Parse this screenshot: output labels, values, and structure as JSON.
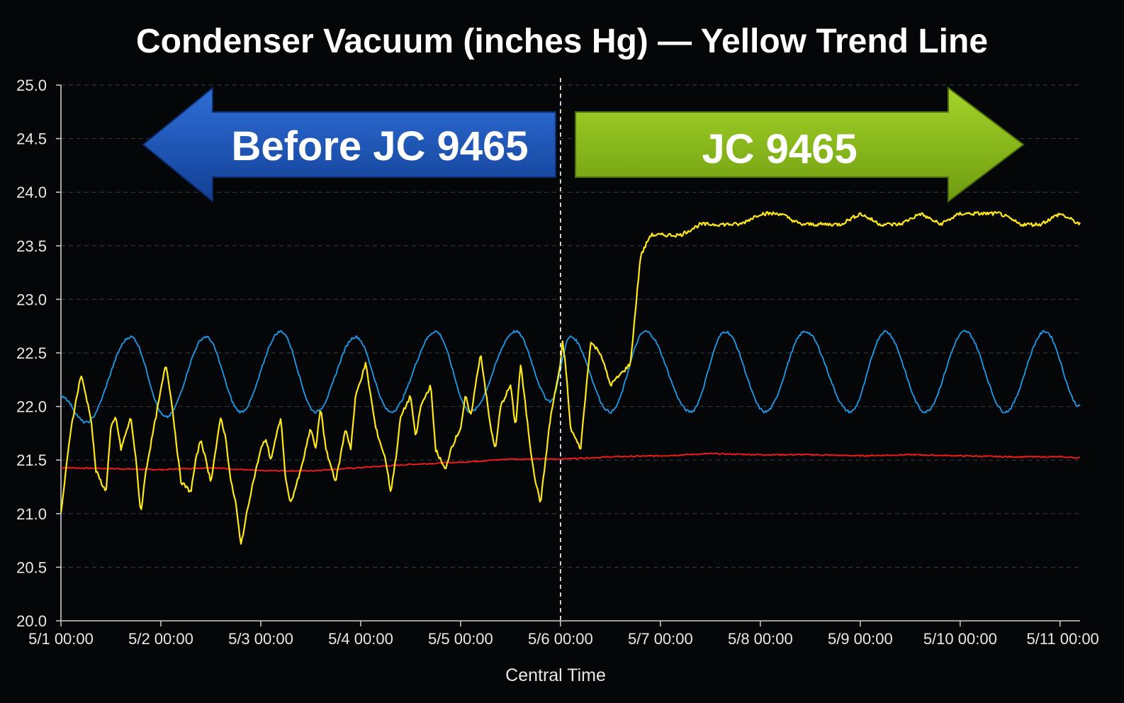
{
  "chart_data": {
    "type": "line",
    "title": "Condenser Vacuum (inches Hg) — Yellow Trend Line",
    "xlabel": "Central Time",
    "ylabel": "",
    "ylim": [
      20.0,
      25.0
    ],
    "yticks": [
      "20.0",
      "20.5",
      "21.0",
      "21.5",
      "22.0",
      "22.5",
      "23.0",
      "23.5",
      "24.0",
      "24.5",
      "25.0"
    ],
    "xlim": [
      0,
      10.2
    ],
    "xticks": [
      "5/1 00:00",
      "5/2 00:00",
      "5/3 00:00",
      "5/4 00:00",
      "5/5 00:00",
      "5/6 00:00",
      "5/7 00:00",
      "5/8 00:00",
      "5/9 00:00",
      "5/10 00:00",
      "5/11 00:00"
    ],
    "grid": "horizontal dashed",
    "divider_x": "5/6 00:00",
    "annotations": [
      {
        "text": "Before JC 9465",
        "direction": "left",
        "color": "#1f5fc4"
      },
      {
        "text": "JC 9465",
        "direction": "right",
        "color": "#8fc21c"
      }
    ],
    "series": [
      {
        "color": "#ffe81a",
        "x": [
          0.0,
          0.1,
          0.2,
          0.3,
          0.35,
          0.45,
          0.5,
          0.55,
          0.6,
          0.7,
          0.75,
          0.8,
          0.85,
          0.95,
          1.05,
          1.1,
          1.2,
          1.3,
          1.35,
          1.4,
          1.5,
          1.55,
          1.6,
          1.65,
          1.7,
          1.75,
          1.8,
          1.9,
          2.0,
          2.05,
          2.1,
          2.2,
          2.25,
          2.3,
          2.4,
          2.5,
          2.55,
          2.6,
          2.65,
          2.75,
          2.85,
          2.9,
          2.95,
          3.05,
          3.15,
          3.25,
          3.3,
          3.35,
          3.4,
          3.5,
          3.55,
          3.6,
          3.7,
          3.75,
          3.85,
          3.9,
          4.0,
          4.05,
          4.1,
          4.2,
          4.3,
          4.35,
          4.4,
          4.5,
          4.55,
          4.6,
          4.7,
          4.75,
          4.8,
          4.9,
          5.0,
          5.02,
          5.05,
          5.1,
          5.2,
          5.3,
          5.4,
          5.5,
          5.6,
          5.7,
          5.8,
          5.9,
          6.0,
          6.2,
          6.4,
          6.6,
          6.8,
          7.0,
          7.2,
          7.4,
          7.6,
          7.8,
          8.0,
          8.2,
          8.4,
          8.6,
          8.8,
          9.0,
          9.2,
          9.4,
          9.6,
          9.8,
          10.0,
          10.2
        ],
        "y": [
          21.0,
          21.8,
          22.3,
          21.9,
          21.4,
          21.2,
          21.8,
          21.9,
          21.6,
          21.9,
          21.5,
          21.0,
          21.4,
          21.9,
          22.4,
          22.1,
          21.3,
          21.2,
          21.5,
          21.7,
          21.3,
          21.6,
          21.9,
          21.7,
          21.3,
          21.1,
          20.7,
          21.2,
          21.6,
          21.7,
          21.5,
          21.9,
          21.3,
          21.1,
          21.4,
          21.8,
          21.6,
          22.0,
          21.6,
          21.3,
          21.8,
          21.6,
          22.1,
          22.4,
          21.8,
          21.5,
          21.2,
          21.5,
          21.9,
          22.1,
          21.7,
          22.0,
          22.2,
          21.6,
          21.4,
          21.6,
          21.8,
          22.1,
          21.9,
          22.5,
          21.8,
          21.6,
          22.0,
          22.2,
          21.8,
          22.4,
          21.6,
          21.3,
          21.1,
          21.9,
          22.4,
          22.6,
          22.4,
          21.8,
          21.6,
          22.6,
          22.5,
          22.2,
          22.3,
          22.4,
          23.4,
          23.6,
          23.6,
          23.6,
          23.7,
          23.7,
          23.7,
          23.8,
          23.8,
          23.7,
          23.7,
          23.7,
          23.8,
          23.7,
          23.7,
          23.8,
          23.7,
          23.8,
          23.8,
          23.8,
          23.7,
          23.7,
          23.8,
          23.7
        ]
      },
      {
        "color": "#1e9bea",
        "x": [
          0.0,
          0.25,
          0.7,
          1.05,
          1.45,
          1.8,
          2.2,
          2.55,
          2.95,
          3.3,
          3.75,
          4.1,
          4.55,
          4.9,
          5.1,
          5.5,
          5.85,
          6.3,
          6.65,
          7.05,
          7.45,
          7.9,
          8.25,
          8.65,
          9.05,
          9.45,
          9.85,
          10.2
        ],
        "y": [
          22.1,
          21.85,
          22.65,
          21.9,
          22.65,
          21.95,
          22.7,
          21.95,
          22.65,
          21.95,
          22.7,
          21.95,
          22.7,
          22.05,
          22.65,
          21.95,
          22.7,
          21.95,
          22.7,
          21.95,
          22.7,
          21.95,
          22.7,
          21.95,
          22.7,
          21.95,
          22.7,
          22.0
        ]
      },
      {
        "color": "#ff1a1a",
        "x": [
          0.0,
          0.5,
          1.0,
          1.5,
          2.0,
          2.5,
          3.0,
          3.5,
          4.0,
          4.5,
          5.0,
          5.5,
          6.0,
          6.5,
          7.0,
          7.5,
          8.0,
          8.5,
          9.0,
          9.5,
          10.0,
          10.2
        ],
        "y": [
          21.43,
          21.42,
          21.41,
          21.43,
          21.4,
          21.4,
          21.43,
          21.46,
          21.48,
          21.51,
          21.51,
          21.53,
          21.54,
          21.56,
          21.55,
          21.55,
          21.54,
          21.55,
          21.54,
          21.53,
          21.53,
          21.52
        ]
      }
    ]
  }
}
